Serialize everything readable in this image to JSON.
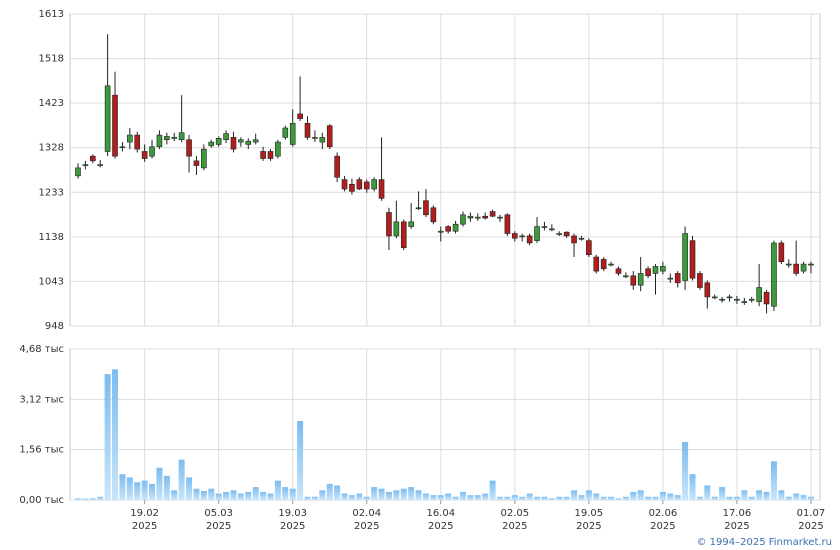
{
  "chart_data": [
    {
      "type": "candlestick",
      "rise_color": "#3c9a3c",
      "fall_color": "#b01e1e",
      "grid": true,
      "ylim": [
        948,
        1613
      ],
      "yticks": [
        948,
        1043,
        1138,
        1233,
        1328,
        1423,
        1518,
        1613
      ],
      "xlim": [
        -1.08,
        100.22
      ],
      "open": [
        1268,
        1290,
        1310,
        1292,
        1320,
        1440,
        1328,
        1340,
        1355,
        1320,
        1310,
        1330,
        1345,
        1348,
        1345,
        1345,
        1300,
        1285,
        1332,
        1335,
        1345,
        1350,
        1340,
        1335,
        1340,
        1320,
        1320,
        1310,
        1350,
        1335,
        1400,
        1380,
        1350,
        1340,
        1375,
        1310,
        1260,
        1250,
        1260,
        1255,
        1240,
        1260,
        1190,
        1140,
        1170,
        1160,
        1198,
        1215,
        1200,
        1150,
        1160,
        1150,
        1165,
        1178,
        1180,
        1182,
        1192,
        1180,
        1185,
        1145,
        1140,
        1140,
        1130,
        1160,
        1155,
        1145,
        1148,
        1140,
        1135,
        1130,
        1095,
        1090,
        1080,
        1070,
        1055,
        1055,
        1035,
        1070,
        1060,
        1065,
        1050,
        1060,
        1045,
        1130,
        1060,
        1040,
        1010,
        1005,
        1010,
        1005,
        1000,
        1005,
        1000,
        1020,
        990,
        1125,
        1080,
        1080,
        1065,
        1080
      ],
      "high": [
        1295,
        1300,
        1314,
        1302,
        1570,
        1490,
        1340,
        1370,
        1362,
        1335,
        1345,
        1365,
        1360,
        1360,
        1440,
        1355,
        1310,
        1335,
        1345,
        1352,
        1365,
        1362,
        1350,
        1348,
        1358,
        1330,
        1325,
        1345,
        1375,
        1410,
        1480,
        1395,
        1365,
        1360,
        1378,
        1318,
        1268,
        1262,
        1265,
        1260,
        1265,
        1350,
        1200,
        1215,
        1175,
        1210,
        1235,
        1240,
        1205,
        1160,
        1163,
        1172,
        1192,
        1190,
        1188,
        1190,
        1196,
        1185,
        1188,
        1150,
        1145,
        1145,
        1180,
        1170,
        1165,
        1150,
        1150,
        1145,
        1140,
        1135,
        1100,
        1095,
        1085,
        1075,
        1062,
        1065,
        1095,
        1075,
        1080,
        1085,
        1060,
        1065,
        1160,
        1140,
        1065,
        1045,
        1015,
        1010,
        1015,
        1012,
        1008,
        1010,
        1080,
        1025,
        1130,
        1130,
        1090,
        1130,
        1085,
        1085
      ],
      "low": [
        1262,
        1282,
        1295,
        1286,
        1310,
        1305,
        1320,
        1325,
        1318,
        1298,
        1305,
        1325,
        1335,
        1342,
        1340,
        1275,
        1270,
        1280,
        1328,
        1330,
        1338,
        1318,
        1330,
        1325,
        1335,
        1300,
        1300,
        1305,
        1345,
        1330,
        1385,
        1345,
        1340,
        1325,
        1325,
        1255,
        1235,
        1228,
        1238,
        1232,
        1235,
        1215,
        1110,
        1135,
        1110,
        1155,
        1195,
        1180,
        1165,
        1128,
        1145,
        1145,
        1160,
        1170,
        1172,
        1175,
        1180,
        1170,
        1140,
        1128,
        1128,
        1120,
        1125,
        1152,
        1150,
        1140,
        1136,
        1095,
        1130,
        1095,
        1060,
        1065,
        1075,
        1055,
        1050,
        1025,
        1022,
        1050,
        1015,
        1058,
        1040,
        1030,
        1025,
        1045,
        1025,
        985,
        1005,
        998,
        1000,
        995,
        993,
        998,
        990,
        975,
        980,
        1080,
        1072,
        1055,
        1060,
        1060
      ],
      "close": [
        1285,
        1292,
        1300,
        1292,
        1460,
        1310,
        1330,
        1355,
        1325,
        1305,
        1330,
        1355,
        1352,
        1350,
        1360,
        1310,
        1290,
        1325,
        1340,
        1348,
        1358,
        1325,
        1345,
        1342,
        1345,
        1305,
        1305,
        1340,
        1370,
        1380,
        1390,
        1350,
        1350,
        1350,
        1330,
        1265,
        1240,
        1235,
        1240,
        1240,
        1260,
        1220,
        1140,
        1170,
        1115,
        1170,
        1200,
        1185,
        1170,
        1150,
        1150,
        1165,
        1185,
        1182,
        1180,
        1178,
        1182,
        1180,
        1145,
        1135,
        1140,
        1125,
        1160,
        1160,
        1155,
        1145,
        1140,
        1125,
        1135,
        1100,
        1065,
        1070,
        1080,
        1060,
        1055,
        1035,
        1060,
        1055,
        1075,
        1075,
        1050,
        1040,
        1145,
        1050,
        1030,
        1010,
        1010,
        1005,
        1010,
        1005,
        1000,
        1005,
        1030,
        995,
        1125,
        1085,
        1080,
        1060,
        1080,
        1080
      ]
    },
    {
      "type": "bar",
      "color": "#9dd0f4",
      "grid": true,
      "ylim": [
        0,
        4.68
      ],
      "yticks": [
        {
          "value": 0,
          "label": "0,00 тыс"
        },
        {
          "value": 1.56,
          "label": "1,56 тыс"
        },
        {
          "value": 3.12,
          "label": "3,12 тыс"
        },
        {
          "value": 4.68,
          "label": "4,68 тыс"
        }
      ],
      "xlim": [
        -1.08,
        100.22
      ],
      "xticks": [
        {
          "value": 9,
          "label": "19.02",
          "sublabel": "2025"
        },
        {
          "value": 19,
          "label": "05.03",
          "sublabel": "2025"
        },
        {
          "value": 29,
          "label": "19.03",
          "sublabel": "2025"
        },
        {
          "value": 39,
          "label": "02.04",
          "sublabel": "2025"
        },
        {
          "value": 49,
          "label": "16.04",
          "sublabel": "2025"
        },
        {
          "value": 59,
          "label": "02.05",
          "sublabel": "2025"
        },
        {
          "value": 69,
          "label": "19.05",
          "sublabel": "2025"
        },
        {
          "value": 79,
          "label": "02.06",
          "sublabel": "2025"
        },
        {
          "value": 89,
          "label": "17.06",
          "sublabel": "2025"
        },
        {
          "value": 99,
          "label": "01.07",
          "sublabel": "2025"
        }
      ],
      "values": [
        0.05,
        0.04,
        0.05,
        0.1,
        3.9,
        4.05,
        0.8,
        0.7,
        0.55,
        0.6,
        0.5,
        1.0,
        0.75,
        0.3,
        1.25,
        0.7,
        0.35,
        0.28,
        0.35,
        0.2,
        0.25,
        0.3,
        0.2,
        0.25,
        0.4,
        0.25,
        0.2,
        0.6,
        0.4,
        0.35,
        2.45,
        0.1,
        0.1,
        0.3,
        0.5,
        0.45,
        0.2,
        0.15,
        0.2,
        0.1,
        0.4,
        0.35,
        0.25,
        0.3,
        0.35,
        0.4,
        0.3,
        0.2,
        0.15,
        0.15,
        0.2,
        0.1,
        0.25,
        0.15,
        0.15,
        0.2,
        0.6,
        0.1,
        0.1,
        0.15,
        0.1,
        0.2,
        0.1,
        0.1,
        0.05,
        0.1,
        0.1,
        0.3,
        0.15,
        0.3,
        0.2,
        0.1,
        0.1,
        0.05,
        0.1,
        0.25,
        0.3,
        0.1,
        0.1,
        0.25,
        0.2,
        0.15,
        1.8,
        0.8,
        0.1,
        0.45,
        0.1,
        0.4,
        0.1,
        0.1,
        0.3,
        0.1,
        0.3,
        0.25,
        1.2,
        0.3,
        0.1,
        0.2,
        0.15,
        0.1
      ]
    }
  ],
  "footer": "© 1994–2025 Finmarket.ru"
}
